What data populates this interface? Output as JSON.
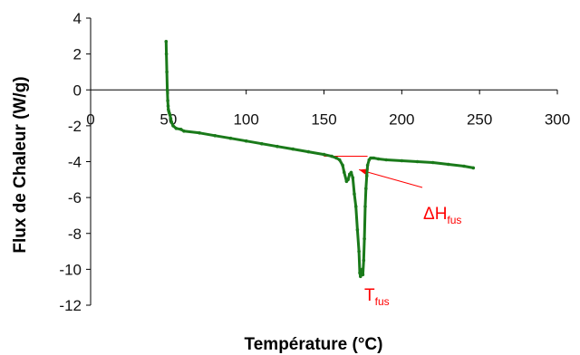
{
  "chart_data": {
    "type": "line",
    "title": "",
    "xlabel": "Température (°C)",
    "ylabel": "Flux de Chaleur (W/g)",
    "xlim": [
      0,
      300
    ],
    "ylim": [
      -12,
      4
    ],
    "x_ticks": [
      0,
      50,
      100,
      150,
      200,
      250,
      300
    ],
    "y_ticks": [
      4,
      2,
      0,
      -2,
      -4,
      -6,
      -8,
      -10,
      -12
    ],
    "grid": false,
    "legend": "none",
    "series_color": "#1a7a1a",
    "annotation_color": "#ff0000",
    "series": [
      {
        "x": [
          48.5,
          48.7,
          49.0,
          49.3,
          49.6,
          49.8,
          50.0,
          50.3,
          50.6,
          51.0,
          51.5,
          52.0,
          53.0,
          55.0,
          58.0,
          60.0,
          70.0,
          80.0,
          90.0,
          100.0,
          110.0,
          120.0,
          130.0,
          140.0,
          150.0,
          155.0,
          158.0,
          160.0,
          162.0,
          163.0,
          164.5,
          165.5,
          166.5,
          167.5,
          168.5,
          169.5,
          170.5,
          171.5,
          172.5,
          173.0,
          173.5,
          174.0,
          174.5,
          175.0,
          175.5,
          176.0,
          176.5,
          177.0,
          177.5,
          178.0,
          179.0,
          180.0,
          181.0,
          182.0,
          185.0,
          190.0,
          200.0,
          210.0,
          220.0,
          230.0,
          240.0,
          246.0
        ],
        "y": [
          2.7,
          2.0,
          1.0,
          0.0,
          -0.6,
          -0.9,
          -1.1,
          -1.2,
          -1.3,
          -1.4,
          -1.6,
          -1.8,
          -2.0,
          -2.15,
          -2.2,
          -2.3,
          -2.4,
          -2.55,
          -2.7,
          -2.85,
          -3.0,
          -3.15,
          -3.3,
          -3.45,
          -3.6,
          -3.7,
          -3.8,
          -3.9,
          -4.2,
          -4.6,
          -5.1,
          -5.0,
          -4.7,
          -4.6,
          -4.9,
          -5.8,
          -6.5,
          -7.8,
          -9.0,
          -10.2,
          -10.4,
          -10.3,
          -10.0,
          -10.3,
          -9.5,
          -8.3,
          -6.5,
          -5.5,
          -4.8,
          -4.2,
          -3.9,
          -3.8,
          -3.8,
          -3.8,
          -3.85,
          -3.9,
          -3.95,
          -4.0,
          -4.05,
          -4.15,
          -4.25,
          -4.35
        ]
      }
    ],
    "annotations": {
      "dh_main": "ΔH",
      "dh_sub": "fus",
      "t_main": "T",
      "t_sub": "fus"
    }
  }
}
